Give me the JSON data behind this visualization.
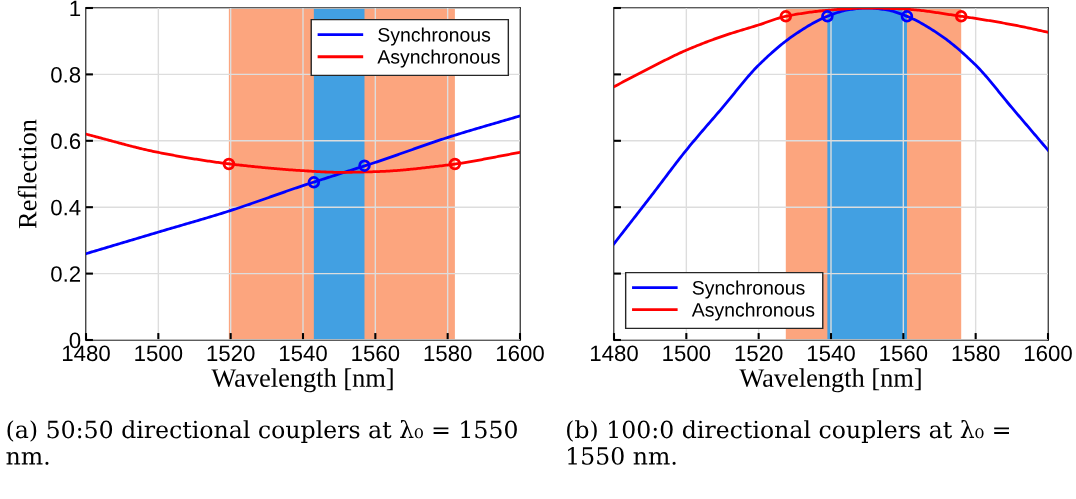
{
  "chart_data": [
    {
      "type": "line",
      "xlabel": "Wavelength [nm]",
      "ylabel": "Reflection",
      "xlim": [
        1480,
        1600
      ],
      "xticks": [
        1480,
        1500,
        1520,
        1540,
        1560,
        1580,
        1600
      ],
      "ylim": [
        0,
        1
      ],
      "yticks": [
        0,
        0.2,
        0.4,
        0.6,
        0.8,
        1
      ],
      "grid": true,
      "legend": "top right",
      "bands": [
        {
          "axis": "x",
          "from": 1519.5,
          "to": 1582,
          "color": "#fca57e"
        },
        {
          "axis": "x",
          "from": 1543,
          "to": 1557,
          "color": "#42a0e2"
        }
      ],
      "series": [
        {
          "name": "Synchronous",
          "color": "#0000ff",
          "x": [
            1480,
            1500,
            1520,
            1540,
            1550,
            1560,
            1580,
            1600
          ],
          "values": [
            0.26,
            0.325,
            0.39,
            0.465,
            0.5,
            0.535,
            0.61,
            0.675
          ]
        },
        {
          "name": "Asynchronous",
          "color": "#ff0000",
          "x": [
            1480,
            1500,
            1520,
            1540,
            1550,
            1560,
            1580,
            1600
          ],
          "values": [
            0.62,
            0.565,
            0.53,
            0.51,
            0.505,
            0.507,
            0.527,
            0.565
          ]
        },
        {
          "type": "scatter",
          "marker": "circle",
          "color": "#0000ff",
          "x": [
            1543,
            1557
          ],
          "values": [
            0.475,
            0.525
          ]
        },
        {
          "type": "scatter",
          "marker": "circle",
          "color": "#ff0000",
          "x": [
            1519.5,
            1582
          ],
          "values": [
            0.53,
            0.53
          ]
        }
      ],
      "annotations": [
        "(a) 50:50 directional couplers at λ₀ = 1550 nm."
      ]
    },
    {
      "type": "line",
      "xlabel": "Wavelength [nm]",
      "xlim": [
        1480,
        1600
      ],
      "xticks": [
        1480,
        1500,
        1520,
        1540,
        1560,
        1580,
        1600
      ],
      "ylim": [
        0,
        1
      ],
      "yticks": [
        0,
        0.2,
        0.4,
        0.6,
        0.8,
        1
      ],
      "tick_labels": "x",
      "grid": true,
      "legend": "bottom left",
      "bands": [
        {
          "axis": "x",
          "from": 1527.5,
          "to": 1576,
          "color": "#fca57e"
        },
        {
          "axis": "x",
          "from": 1539,
          "to": 1561,
          "color": "#42a0e2"
        }
      ],
      "series": [
        {
          "name": "Synchronous",
          "color": "#0000ff",
          "x": [
            1480,
            1490,
            1500,
            1510,
            1520,
            1530,
            1539,
            1545,
            1550,
            1555,
            1561,
            1570,
            1580,
            1590,
            1600
          ],
          "values": [
            0.29,
            0.43,
            0.572,
            0.7,
            0.828,
            0.92,
            0.975,
            0.995,
            1.0,
            0.995,
            0.975,
            0.92,
            0.828,
            0.7,
            0.572
          ]
        },
        {
          "name": "Asynchronous",
          "color": "#ff0000",
          "x": [
            1480,
            1490,
            1500,
            1510,
            1520,
            1527.5,
            1540,
            1550,
            1560,
            1576,
            1590,
            1600
          ],
          "values": [
            0.763,
            0.82,
            0.873,
            0.915,
            0.949,
            0.975,
            0.994,
            1.0,
            0.997,
            0.975,
            0.95,
            0.927
          ]
        },
        {
          "type": "scatter",
          "marker": "circle",
          "color": "#0000ff",
          "x": [
            1539,
            1561
          ],
          "values": [
            0.975,
            0.975
          ]
        },
        {
          "type": "scatter",
          "marker": "circle",
          "color": "#ff0000",
          "x": [
            1527.5,
            1576
          ],
          "values": [
            0.975,
            0.975
          ]
        }
      ],
      "annotations": [
        "(b) 100:0 directional couplers at λ₀ = 1550 nm."
      ]
    }
  ]
}
